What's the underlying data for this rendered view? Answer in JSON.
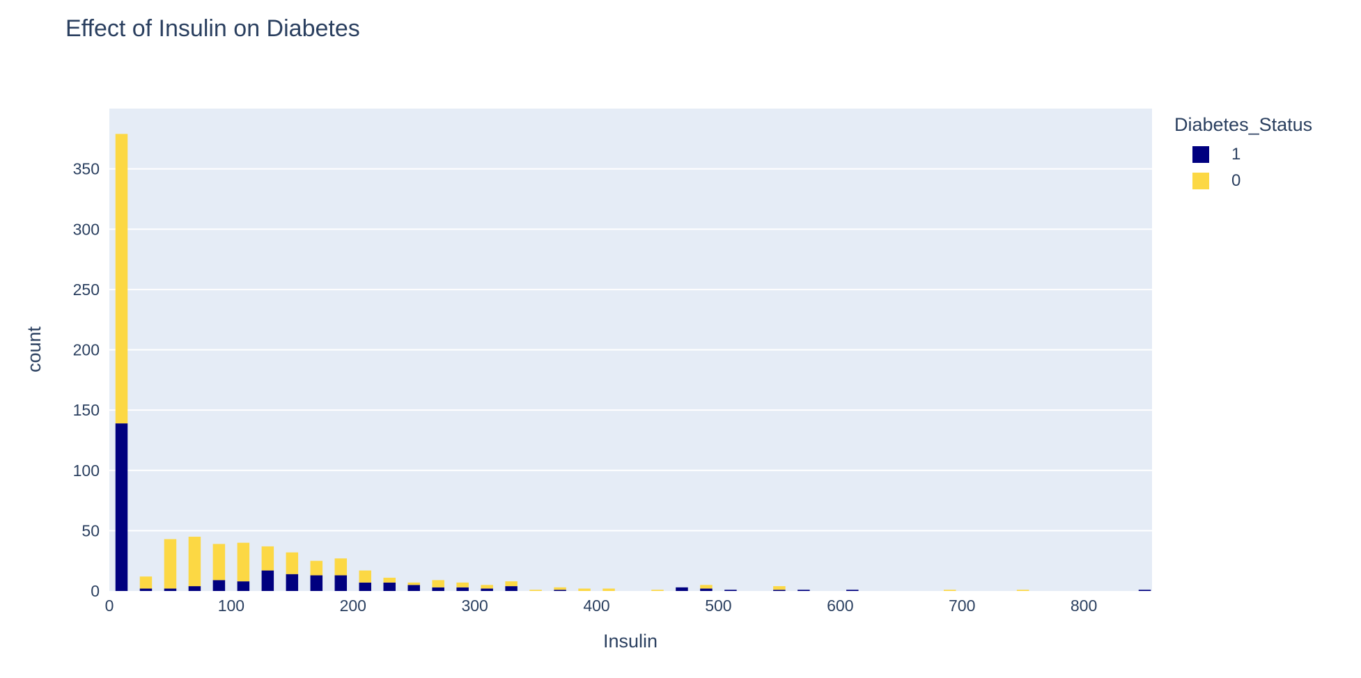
{
  "chart_data": {
    "type": "bar",
    "barmode": "stack",
    "title": "Effect of Insulin on Diabetes",
    "xlabel": "Insulin",
    "ylabel": "count",
    "xlim": [
      0,
      856
    ],
    "ylim": [
      0,
      400
    ],
    "bin_width": 20,
    "xticks": [
      0,
      100,
      200,
      300,
      400,
      500,
      600,
      700,
      800
    ],
    "yticks": [
      0,
      50,
      100,
      150,
      200,
      250,
      300,
      350
    ],
    "grid": true,
    "legend_title": "Diabetes_Status",
    "legend_position": "top-right",
    "x": [
      10,
      30,
      50,
      70,
      90,
      110,
      130,
      150,
      170,
      190,
      210,
      230,
      250,
      270,
      290,
      310,
      330,
      350,
      370,
      390,
      410,
      430,
      450,
      470,
      490,
      510,
      530,
      550,
      570,
      590,
      610,
      630,
      650,
      670,
      690,
      710,
      730,
      750,
      770,
      790,
      810,
      830,
      850
    ],
    "series": [
      {
        "name": "1",
        "color": "#00007f",
        "values": [
          139,
          2,
          2,
          4,
          9,
          8,
          17,
          14,
          13,
          13,
          7,
          7,
          5,
          3,
          3,
          2,
          4,
          0,
          1,
          0,
          0,
          0,
          0,
          3,
          2,
          1,
          0,
          1,
          1,
          0,
          1,
          0,
          0,
          0,
          0,
          0,
          0,
          0,
          0,
          0,
          0,
          0,
          1
        ]
      },
      {
        "name": "0",
        "color": "#fcd844",
        "values": [
          240,
          10,
          41,
          41,
          30,
          32,
          20,
          18,
          12,
          14,
          10,
          4,
          2,
          6,
          4,
          3,
          4,
          1,
          2,
          2,
          2,
          0,
          1,
          0,
          3,
          0,
          0,
          3,
          0,
          0,
          0,
          0,
          0,
          0,
          1,
          0,
          0,
          1,
          0,
          0,
          0,
          0,
          0
        ]
      }
    ]
  }
}
